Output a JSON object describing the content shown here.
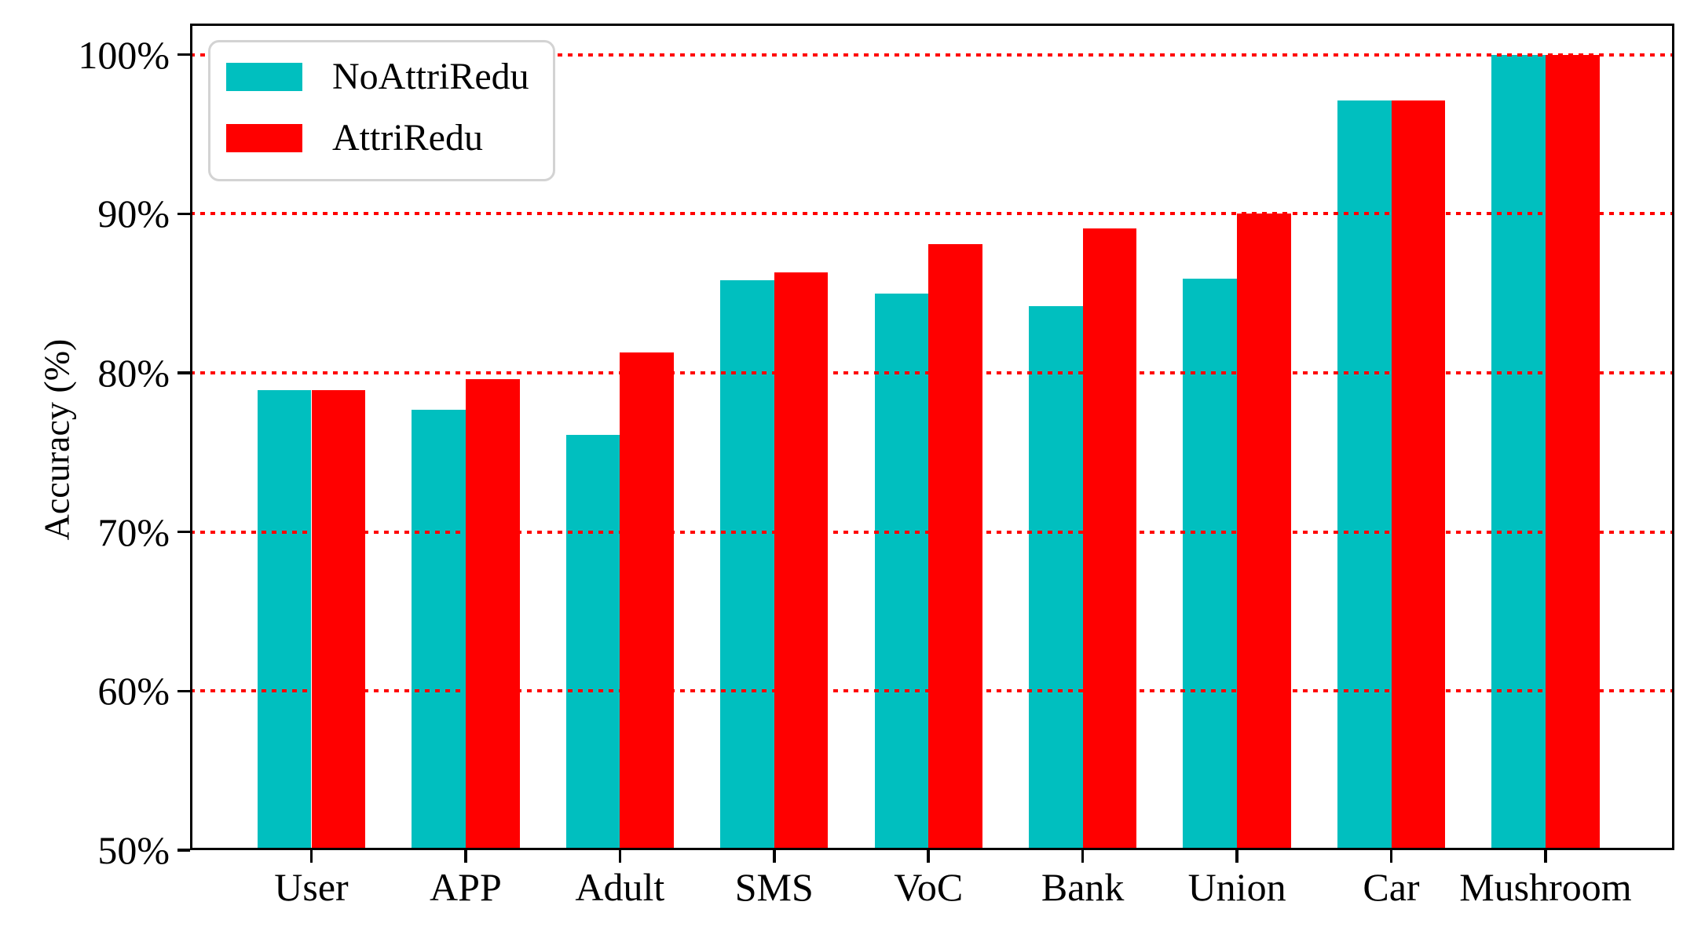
{
  "chart_data": {
    "type": "bar",
    "title": "",
    "xlabel": "",
    "ylabel": "Accuracy (%)",
    "categories": [
      "User",
      "APP",
      "Adult",
      "SMS",
      "VoC",
      "Bank",
      "Union",
      "Car",
      "Mushroom"
    ],
    "series": [
      {
        "name": "NoAttriRedu",
        "color": "#00BFBF",
        "values": [
          78.9,
          77.7,
          76.1,
          85.8,
          85.0,
          84.2,
          85.9,
          97.1,
          100.0
        ]
      },
      {
        "name": "AttriRedu",
        "color": "#FF0000",
        "values": [
          78.9,
          79.6,
          81.3,
          86.3,
          88.1,
          89.1,
          90.0,
          97.1,
          100.0
        ]
      }
    ],
    "ylim": [
      50,
      102
    ],
    "yticks": [
      50,
      60,
      70,
      80,
      90,
      100
    ],
    "ytick_labels": [
      "50%",
      "60%",
      "70%",
      "80%",
      "90%",
      "100%"
    ],
    "grid_values": [
      60,
      70,
      80,
      90,
      100
    ],
    "grid_color": "#FF0000",
    "grid_style": "dotted",
    "grid_on_top_of_bars": true,
    "legend_position": "upper left",
    "axis_color": "#000000",
    "background_color": "#FFFFFF"
  }
}
